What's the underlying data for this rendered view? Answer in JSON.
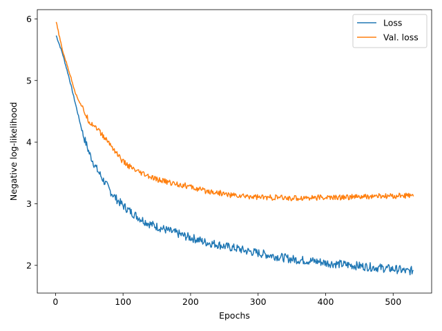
{
  "chart_data": {
    "type": "line",
    "title": "",
    "xlabel": "Epochs",
    "ylabel": "Negative log-likelihood",
    "xlim": [
      -27,
      557
    ],
    "ylim": [
      1.55,
      6.15
    ],
    "x_ticks": [
      0,
      100,
      200,
      300,
      400,
      500
    ],
    "y_ticks": [
      2,
      3,
      4,
      5,
      6
    ],
    "x_tick_labels": [
      "0",
      "100",
      "200",
      "300",
      "400",
      "500"
    ],
    "y_tick_labels": [
      "2",
      "3",
      "4",
      "5",
      "6"
    ],
    "grid": false,
    "legend": {
      "position": "top-right",
      "entries": [
        "Loss",
        "Val. loss"
      ]
    },
    "series": [
      {
        "name": "Loss",
        "color": "#1f77b4",
        "x": [
          1,
          10,
          20,
          30,
          40,
          50,
          60,
          70,
          80,
          90,
          100,
          110,
          120,
          130,
          140,
          150,
          160,
          170,
          180,
          190,
          200,
          210,
          220,
          230,
          240,
          250,
          260,
          270,
          280,
          290,
          300,
          310,
          320,
          330,
          340,
          350,
          360,
          370,
          380,
          390,
          400,
          410,
          420,
          430,
          440,
          450,
          460,
          470,
          480,
          490,
          500,
          510,
          520,
          530
        ],
        "values": [
          5.73,
          5.45,
          5.05,
          4.6,
          4.15,
          3.82,
          3.58,
          3.4,
          3.22,
          3.08,
          2.97,
          2.88,
          2.8,
          2.73,
          2.67,
          2.63,
          2.59,
          2.55,
          2.52,
          2.48,
          2.45,
          2.42,
          2.38,
          2.36,
          2.34,
          2.31,
          2.29,
          2.27,
          2.24,
          2.22,
          2.2,
          2.18,
          2.16,
          2.14,
          2.12,
          2.1,
          2.09,
          2.08,
          2.07,
          2.06,
          2.04,
          2.03,
          2.02,
          2.01,
          2.0,
          1.99,
          1.98,
          1.97,
          1.96,
          1.95,
          1.94,
          1.93,
          1.9,
          1.92
        ]
      },
      {
        "name": "Val. loss",
        "color": "#ff7f0e",
        "x": [
          1,
          10,
          20,
          30,
          40,
          50,
          60,
          70,
          80,
          90,
          100,
          110,
          120,
          130,
          140,
          150,
          160,
          170,
          180,
          190,
          200,
          210,
          220,
          230,
          240,
          250,
          260,
          270,
          280,
          290,
          300,
          310,
          320,
          330,
          340,
          350,
          360,
          370,
          380,
          390,
          400,
          410,
          420,
          430,
          440,
          450,
          460,
          470,
          480,
          490,
          500,
          510,
          520,
          530
        ],
        "values": [
          5.95,
          5.5,
          5.15,
          4.78,
          4.55,
          4.33,
          4.25,
          4.1,
          3.98,
          3.83,
          3.68,
          3.6,
          3.52,
          3.48,
          3.43,
          3.39,
          3.37,
          3.34,
          3.32,
          3.3,
          3.27,
          3.24,
          3.21,
          3.2,
          3.18,
          3.16,
          3.14,
          3.13,
          3.12,
          3.12,
          3.11,
          3.1,
          3.1,
          3.1,
          3.09,
          3.09,
          3.09,
          3.1,
          3.1,
          3.1,
          3.1,
          3.1,
          3.1,
          3.11,
          3.11,
          3.11,
          3.11,
          3.12,
          3.12,
          3.12,
          3.12,
          3.13,
          3.13,
          3.12
        ]
      }
    ]
  }
}
